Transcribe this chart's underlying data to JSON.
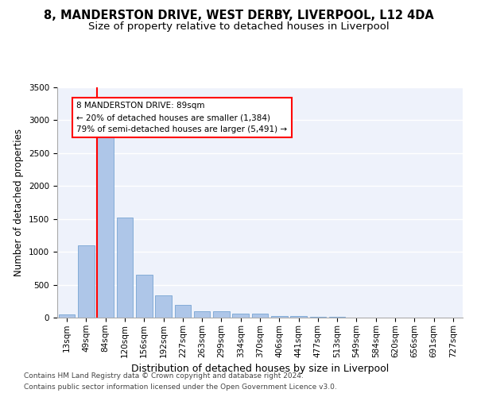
{
  "title1": "8, MANDERSTON DRIVE, WEST DERBY, LIVERPOOL, L12 4DA",
  "title2": "Size of property relative to detached houses in Liverpool",
  "xlabel": "Distribution of detached houses by size in Liverpool",
  "ylabel": "Number of detached properties",
  "categories": [
    "13sqm",
    "49sqm",
    "84sqm",
    "120sqm",
    "156sqm",
    "192sqm",
    "227sqm",
    "263sqm",
    "299sqm",
    "334sqm",
    "370sqm",
    "406sqm",
    "441sqm",
    "477sqm",
    "513sqm",
    "549sqm",
    "584sqm",
    "620sqm",
    "656sqm",
    "691sqm",
    "727sqm"
  ],
  "values": [
    50,
    1100,
    2930,
    1520,
    650,
    340,
    190,
    95,
    95,
    65,
    55,
    30,
    20,
    10,
    10,
    5,
    5,
    2,
    2,
    2,
    2
  ],
  "bar_color": "#aec6e8",
  "bar_edge_color": "#6699cc",
  "highlight_line_index": 2,
  "annotation_title": "8 MANDERSTON DRIVE: 89sqm",
  "annotation_line1": "← 20% of detached houses are smaller (1,384)",
  "annotation_line2": "79% of semi-detached houses are larger (5,491) →",
  "footnote1": "Contains HM Land Registry data © Crown copyright and database right 2024.",
  "footnote2": "Contains public sector information licensed under the Open Government Licence v3.0.",
  "ylim": [
    0,
    3500
  ],
  "bg_color": "#eef2fb",
  "grid_color": "#ffffff",
  "title1_fontsize": 10.5,
  "title2_fontsize": 9.5,
  "xlabel_fontsize": 9,
  "ylabel_fontsize": 8.5,
  "tick_fontsize": 7.5,
  "annotation_fontsize": 7.5,
  "footnote_fontsize": 6.5
}
